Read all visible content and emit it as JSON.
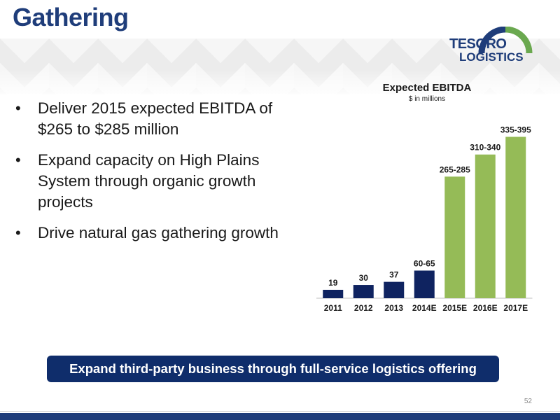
{
  "slide": {
    "title": "Gathering",
    "page_number": "52",
    "banner": "Expand third-party business through full-service logistics offering"
  },
  "logo": {
    "line1": "TESORO",
    "line2": "LOGISTICS",
    "arc_color_left": "#1f3d7a",
    "arc_color_right": "#6aa84f"
  },
  "bullets": [
    "Deliver 2015 expected EBITDA of $265 to $285 million",
    "Expand capacity on High Plains System through organic growth projects",
    "Drive natural gas gathering growth"
  ],
  "colors": {
    "title": "#1f3d7a",
    "actual_bar": "#0f2360",
    "expected_bar": "#95bb57",
    "banner": "#0f2d6b"
  },
  "chart_data": {
    "type": "bar",
    "title": "Expected EBITDA",
    "subtitle": "$ in millions",
    "categories": [
      "2011",
      "2012",
      "2013",
      "2014E",
      "2015E",
      "2016E",
      "2017E"
    ],
    "values": [
      19,
      30,
      37,
      62.5,
      275,
      325,
      365
    ],
    "labels": [
      "19",
      "30",
      "37",
      "60-65",
      "265-285",
      "310-340",
      "335-395"
    ],
    "bar_groups": [
      "actual",
      "actual",
      "actual",
      "actual",
      "expected",
      "expected",
      "expected"
    ],
    "ylim": [
      0,
      380
    ],
    "grid": false,
    "xlabel": "",
    "ylabel": ""
  }
}
